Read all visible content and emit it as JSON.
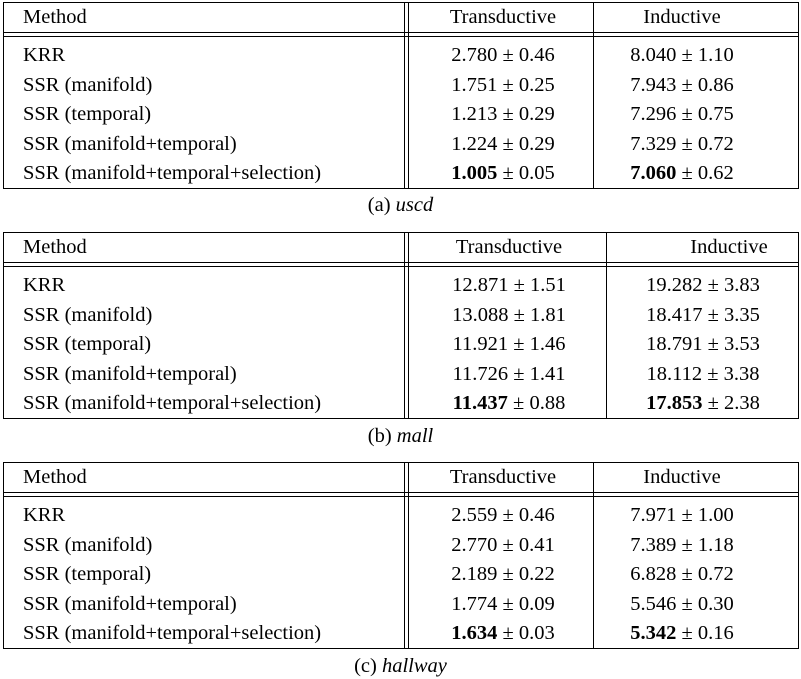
{
  "header": {
    "method": "Method",
    "transductive": "Transductive",
    "inductive": "Inductive"
  },
  "tables": [
    {
      "caption_prefix": "(a)",
      "caption_name": "uscd",
      "rows": [
        {
          "method": "KRR",
          "trans_mean": "2.780",
          "trans_std": "0.46",
          "ind_mean": "8.040",
          "ind_std": "1.10"
        },
        {
          "method": "SSR (manifold)",
          "trans_mean": "1.751",
          "trans_std": "0.25",
          "ind_mean": "7.943",
          "ind_std": "0.86"
        },
        {
          "method": "SSR (temporal)",
          "trans_mean": "1.213",
          "trans_std": "0.29",
          "ind_mean": "7.296",
          "ind_std": "0.75"
        },
        {
          "method": "SSR (manifold+temporal)",
          "trans_mean": "1.224",
          "trans_std": "0.29",
          "ind_mean": "7.329",
          "ind_std": "0.72"
        },
        {
          "method": "SSR (manifold+temporal+selection)",
          "trans_mean": "1.005",
          "trans_std": "0.05",
          "ind_mean": "7.060",
          "ind_std": "0.62",
          "bold": true
        }
      ]
    },
    {
      "caption_prefix": "(b)",
      "caption_name": "mall",
      "rows": [
        {
          "method": "KRR",
          "trans_mean": "12.871",
          "trans_std": "1.51",
          "ind_mean": "19.282",
          "ind_std": "3.83"
        },
        {
          "method": "SSR (manifold)",
          "trans_mean": "13.088",
          "trans_std": "1.81",
          "ind_mean": "18.417",
          "ind_std": "3.35"
        },
        {
          "method": "SSR (temporal)",
          "trans_mean": "11.921",
          "trans_std": "1.46",
          "ind_mean": "18.791",
          "ind_std": "3.53"
        },
        {
          "method": "SSR (manifold+temporal)",
          "trans_mean": "11.726",
          "trans_std": "1.41",
          "ind_mean": "18.112",
          "ind_std": "3.38"
        },
        {
          "method": "SSR (manifold+temporal+selection)",
          "trans_mean": "11.437",
          "trans_std": "0.88",
          "ind_mean": "17.853",
          "ind_std": "2.38",
          "bold": true
        }
      ]
    },
    {
      "caption_prefix": "(c)",
      "caption_name": "hallway",
      "rows": [
        {
          "method": "KRR",
          "trans_mean": "2.559",
          "trans_std": "0.46",
          "ind_mean": "7.971",
          "ind_std": "1.00"
        },
        {
          "method": "SSR (manifold)",
          "trans_mean": "2.770",
          "trans_std": "0.41",
          "ind_mean": "7.389",
          "ind_std": "1.18"
        },
        {
          "method": "SSR (temporal)",
          "trans_mean": "2.189",
          "trans_std": "0.22",
          "ind_mean": "6.828",
          "ind_std": "0.72"
        },
        {
          "method": "SSR (manifold+temporal)",
          "trans_mean": "1.774",
          "trans_std": "0.09",
          "ind_mean": "5.546",
          "ind_std": "0.30"
        },
        {
          "method": "SSR (manifold+temporal+selection)",
          "trans_mean": "1.634",
          "trans_std": "0.03",
          "ind_mean": "5.342",
          "ind_std": "0.16",
          "bold": true
        }
      ]
    }
  ]
}
